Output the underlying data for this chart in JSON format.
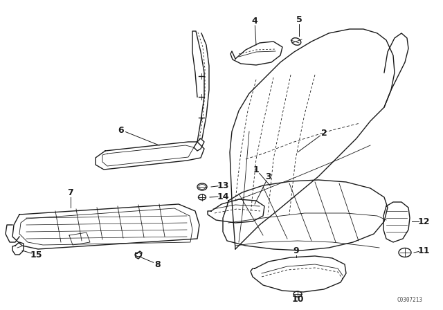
{
  "background_color": "#ffffff",
  "line_color": "#1a1a1a",
  "catalog_number": "C0307213",
  "fig_width": 6.4,
  "fig_height": 4.48,
  "dpi": 100
}
